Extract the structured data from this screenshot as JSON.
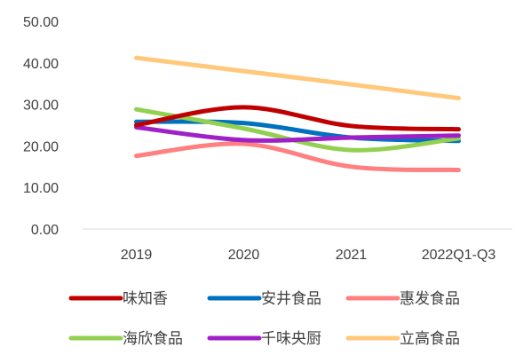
{
  "chart_data": {
    "type": "line",
    "smooth": true,
    "categories": [
      "2019",
      "2020",
      "2021",
      "2022Q1-Q3"
    ],
    "ylim": [
      0,
      50
    ],
    "yticks": [
      "0.00",
      "10.00",
      "20.00",
      "30.00",
      "40.00",
      "50.00"
    ],
    "grid": false,
    "legend_position": "bottom",
    "series": [
      {
        "name": "味知香",
        "color": "#C00000",
        "values": [
          25.0,
          29.3,
          24.8,
          24.0
        ]
      },
      {
        "name": "安井食品",
        "color": "#0070C0",
        "values": [
          25.8,
          25.5,
          22.0,
          21.2
        ]
      },
      {
        "name": "惠发食品",
        "color": "#FF8080",
        "values": [
          17.6,
          20.5,
          15.0,
          14.2
        ]
      },
      {
        "name": "海欣食品",
        "color": "#92D050",
        "values": [
          28.8,
          24.2,
          19.0,
          21.8
        ]
      },
      {
        "name": "千味央厨",
        "color": "#A020C8",
        "values": [
          24.5,
          21.4,
          22.0,
          22.5
        ]
      },
      {
        "name": "立高食品",
        "color": "#FFC87A",
        "values": [
          41.2,
          38.0,
          34.8,
          31.5
        ]
      }
    ]
  }
}
